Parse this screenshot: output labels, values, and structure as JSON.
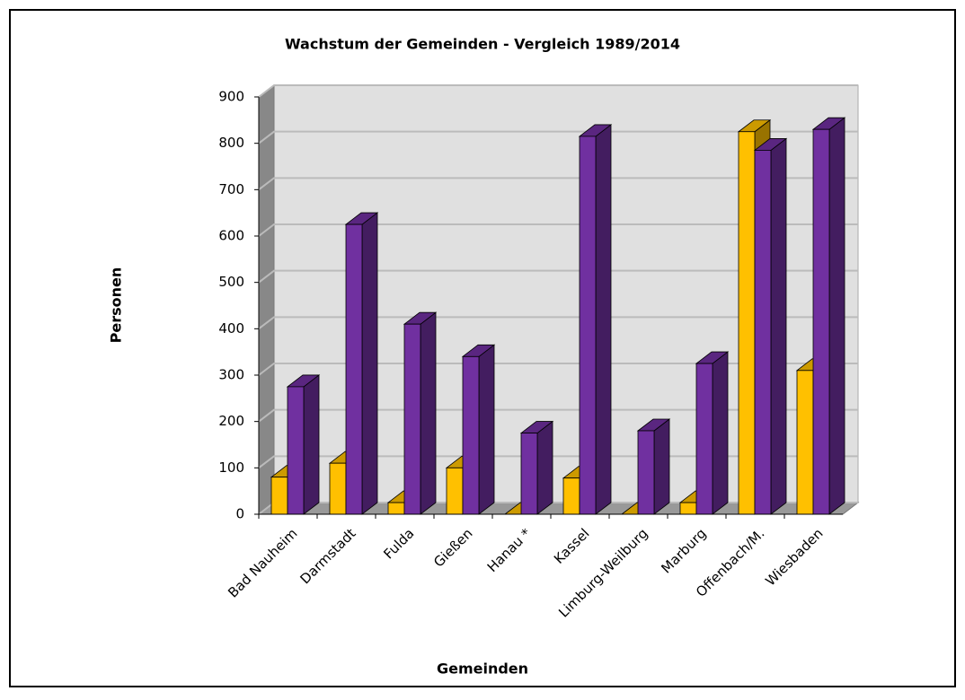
{
  "chart_data": {
    "type": "bar3d",
    "title": "Wachstum der Gemeinden - Vergleich 1989/2014",
    "x_label": "Gemeinden",
    "y_label": "Personen",
    "categories": [
      "Bad Nauheim",
      "Darmstadt",
      "Fulda",
      "Gießen",
      "Hanau *",
      "Kassel",
      "Limburg-Weilburg",
      "Marburg",
      "Offenbach/M.",
      "Wiesbaden"
    ],
    "series": [
      {
        "color": "#ffc000",
        "values": [
          80,
          110,
          25,
          100,
          0,
          78,
          0,
          25,
          825,
          310
        ]
      },
      {
        "color": "#7030a0",
        "values": [
          275,
          625,
          410,
          340,
          175,
          815,
          180,
          325,
          785,
          830
        ]
      }
    ],
    "ylim": [
      0,
      900
    ],
    "yticks": [
      0,
      100,
      200,
      300,
      400,
      500,
      600,
      700,
      800,
      900
    ],
    "grid": true
  }
}
